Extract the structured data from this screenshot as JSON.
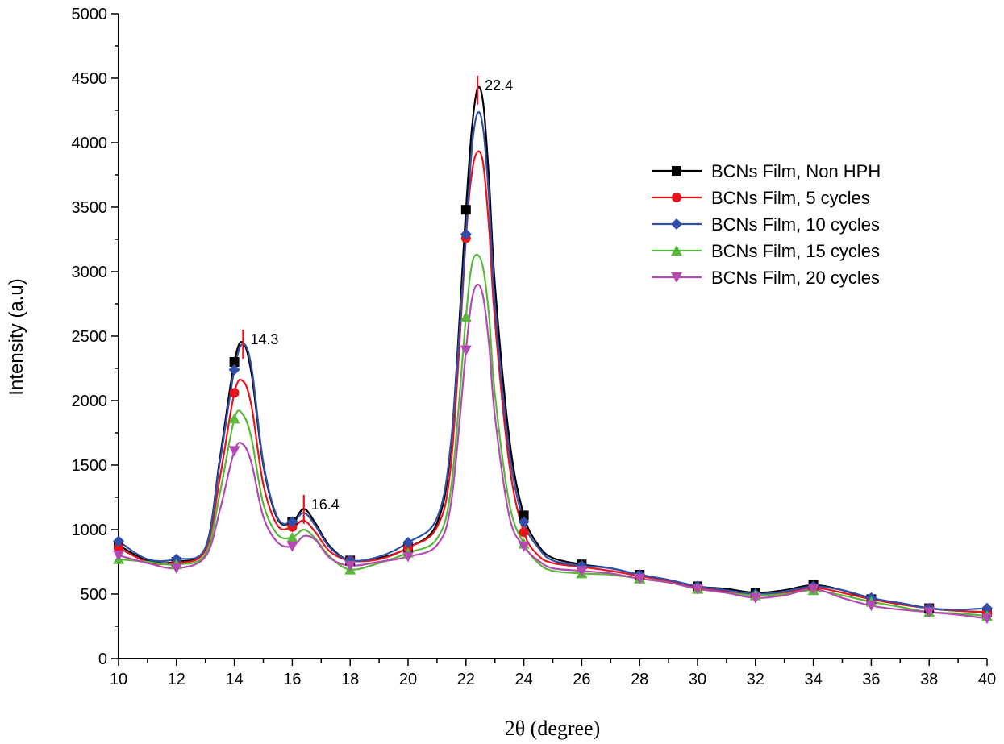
{
  "chart_data": {
    "type": "line",
    "title": "",
    "xlabel": "2θ (degree)",
    "ylabel": "Intensity (a.u)",
    "xlim": [
      10,
      40
    ],
    "ylim": [
      0,
      5000
    ],
    "xticks": [
      10,
      12,
      14,
      16,
      18,
      20,
      22,
      24,
      26,
      28,
      30,
      32,
      34,
      36,
      38,
      40
    ],
    "yticks": [
      0,
      500,
      1000,
      1500,
      2000,
      2500,
      3000,
      3500,
      4000,
      4500,
      5000
    ],
    "grid": false,
    "legend_position": "top-right",
    "annotations": [
      {
        "text": "14.3",
        "x": 14.3,
        "y": 2550
      },
      {
        "text": "16.4",
        "x": 16.4,
        "y": 1270
      },
      {
        "text": "22.4",
        "x": 22.4,
        "y": 4520
      }
    ],
    "x": [
      10,
      11,
      12,
      13,
      13.5,
      14,
      14.3,
      14.6,
      15,
      15.5,
      16,
      16.4,
      16.8,
      17.3,
      18,
      19,
      20,
      21,
      21.5,
      22,
      22.2,
      22.4,
      22.6,
      22.8,
      23,
      23.5,
      24,
      24.5,
      25,
      26,
      27,
      28,
      29,
      30,
      31,
      32,
      33,
      34,
      35,
      36,
      37,
      38,
      39,
      40
    ],
    "series": [
      {
        "name": "BCNs Film, Non HPH",
        "color": "#000000",
        "marker": "square",
        "values": [
          880,
          760,
          750,
          860,
          1550,
          2300,
          2450,
          2200,
          1500,
          1080,
          1060,
          1160,
          1050,
          870,
          760,
          780,
          860,
          1050,
          1700,
          3480,
          4100,
          4420,
          4300,
          3700,
          2900,
          1700,
          1110,
          880,
          780,
          730,
          700,
          650,
          610,
          560,
          540,
          510,
          530,
          570,
          530,
          460,
          430,
          390,
          370,
          360
        ]
      },
      {
        "name": "BCNs Film, 5 cycles",
        "color": "#e8141b",
        "marker": "circle",
        "values": [
          860,
          750,
          740,
          840,
          1400,
          2060,
          2150,
          1950,
          1350,
          1030,
          1020,
          1070,
          980,
          830,
          760,
          770,
          860,
          1020,
          1550,
          3260,
          3760,
          3930,
          3830,
          3330,
          2620,
          1500,
          980,
          800,
          740,
          710,
          680,
          640,
          600,
          550,
          520,
          490,
          510,
          550,
          510,
          460,
          420,
          390,
          370,
          360
        ]
      },
      {
        "name": "BCNs Film, 10 cycles",
        "color": "#2f4fa8",
        "marker": "diamond",
        "values": [
          910,
          770,
          770,
          860,
          1520,
          2240,
          2440,
          2250,
          1520,
          1090,
          1060,
          1130,
          1030,
          860,
          760,
          790,
          900,
          1090,
          1720,
          3290,
          3950,
          4230,
          4100,
          3550,
          2750,
          1600,
          1060,
          860,
          760,
          720,
          700,
          650,
          610,
          560,
          530,
          500,
          520,
          560,
          530,
          470,
          430,
          390,
          380,
          390
        ]
      },
      {
        "name": "BCNs Film, 15 cycles",
        "color": "#58b83a",
        "marker": "triangle-up",
        "values": [
          770,
          750,
          730,
          810,
          1280,
          1860,
          1890,
          1700,
          1200,
          960,
          940,
          1000,
          930,
          790,
          690,
          740,
          820,
          930,
          1350,
          2650,
          3050,
          3130,
          3020,
          2650,
          2050,
          1200,
          890,
          740,
          680,
          660,
          650,
          620,
          590,
          540,
          510,
          490,
          500,
          530,
          490,
          440,
          400,
          360,
          350,
          330
        ]
      },
      {
        "name": "BCNs Film, 20 cycles",
        "color": "#b44ab1",
        "marker": "triangle-down",
        "values": [
          800,
          740,
          700,
          790,
          1150,
          1610,
          1660,
          1510,
          1100,
          900,
          870,
          950,
          920,
          780,
          720,
          750,
          790,
          880,
          1230,
          2390,
          2780,
          2900,
          2800,
          2430,
          1880,
          1100,
          870,
          760,
          700,
          680,
          660,
          620,
          590,
          540,
          510,
          470,
          490,
          540,
          470,
          410,
          380,
          360,
          340,
          310
        ]
      }
    ],
    "marker_x": [
      10,
      12,
      14,
      16,
      18,
      20,
      22,
      24,
      26,
      28,
      30,
      32,
      34,
      36,
      38,
      40
    ],
    "peak_color": "#e8141b"
  }
}
